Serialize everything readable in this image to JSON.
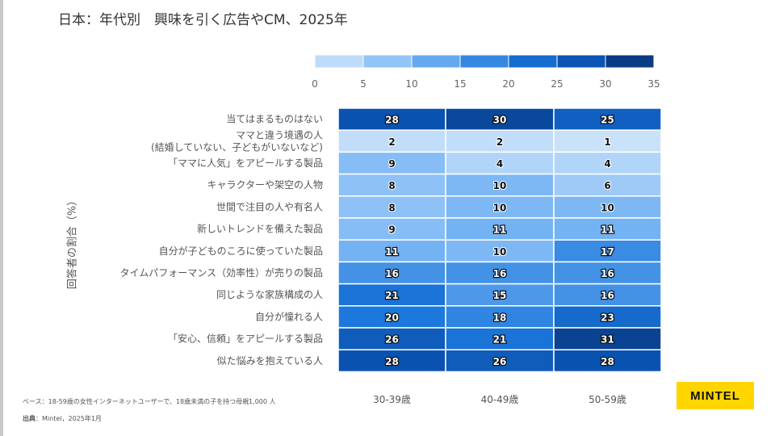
{
  "title": "日本：年代別　興味を引く広告やCM、2025年",
  "chart_data": {
    "type": "heatmap",
    "title": "日本：年代別　興味を引く広告やCM、2025年",
    "ylabel": "回答者の割合（%）",
    "columns": [
      "30-39歳",
      "40-49歳",
      "50-59歳"
    ],
    "rows": [
      "当てはまるものはない",
      "ママと違う境遇の人\n(結婚していない、子どもがいないなど)",
      "「ママに人気」をアピールする製品",
      "キャラクターや架空の人物",
      "世間で注目の人や有名人",
      "新しいトレンドを備えた製品",
      "自分が子どものころに使っていた製品",
      "タイムパフォーマンス（効率性）が売りの製品",
      "同じような家族構成の人",
      "自分が憧れる人",
      "「安心、信頼」をアピールする製品",
      "似た悩みを抱えている人"
    ],
    "values": [
      [
        28,
        30,
        25
      ],
      [
        2,
        2,
        1
      ],
      [
        9,
        4,
        4
      ],
      [
        8,
        10,
        6
      ],
      [
        8,
        10,
        10
      ],
      [
        9,
        11,
        11
      ],
      [
        11,
        10,
        17
      ],
      [
        16,
        16,
        16
      ],
      [
        21,
        15,
        16
      ],
      [
        20,
        18,
        23
      ],
      [
        26,
        21,
        31
      ],
      [
        28,
        26,
        28
      ]
    ],
    "colorbar": {
      "range": [
        0,
        35
      ],
      "ticks": [
        0,
        5,
        10,
        15,
        20,
        25,
        30,
        35
      ],
      "colors": [
        "#d3e6fb",
        "#0a2f6b"
      ]
    },
    "legend": "top"
  },
  "footer": {
    "base": "ベース：18-59歳の女性インターネットユーザーで、18歳未満の子を持つ母親1,000 人",
    "source_label": "出典",
    "source": "：Mintel，2025年1月"
  },
  "logo": "MINTEL"
}
